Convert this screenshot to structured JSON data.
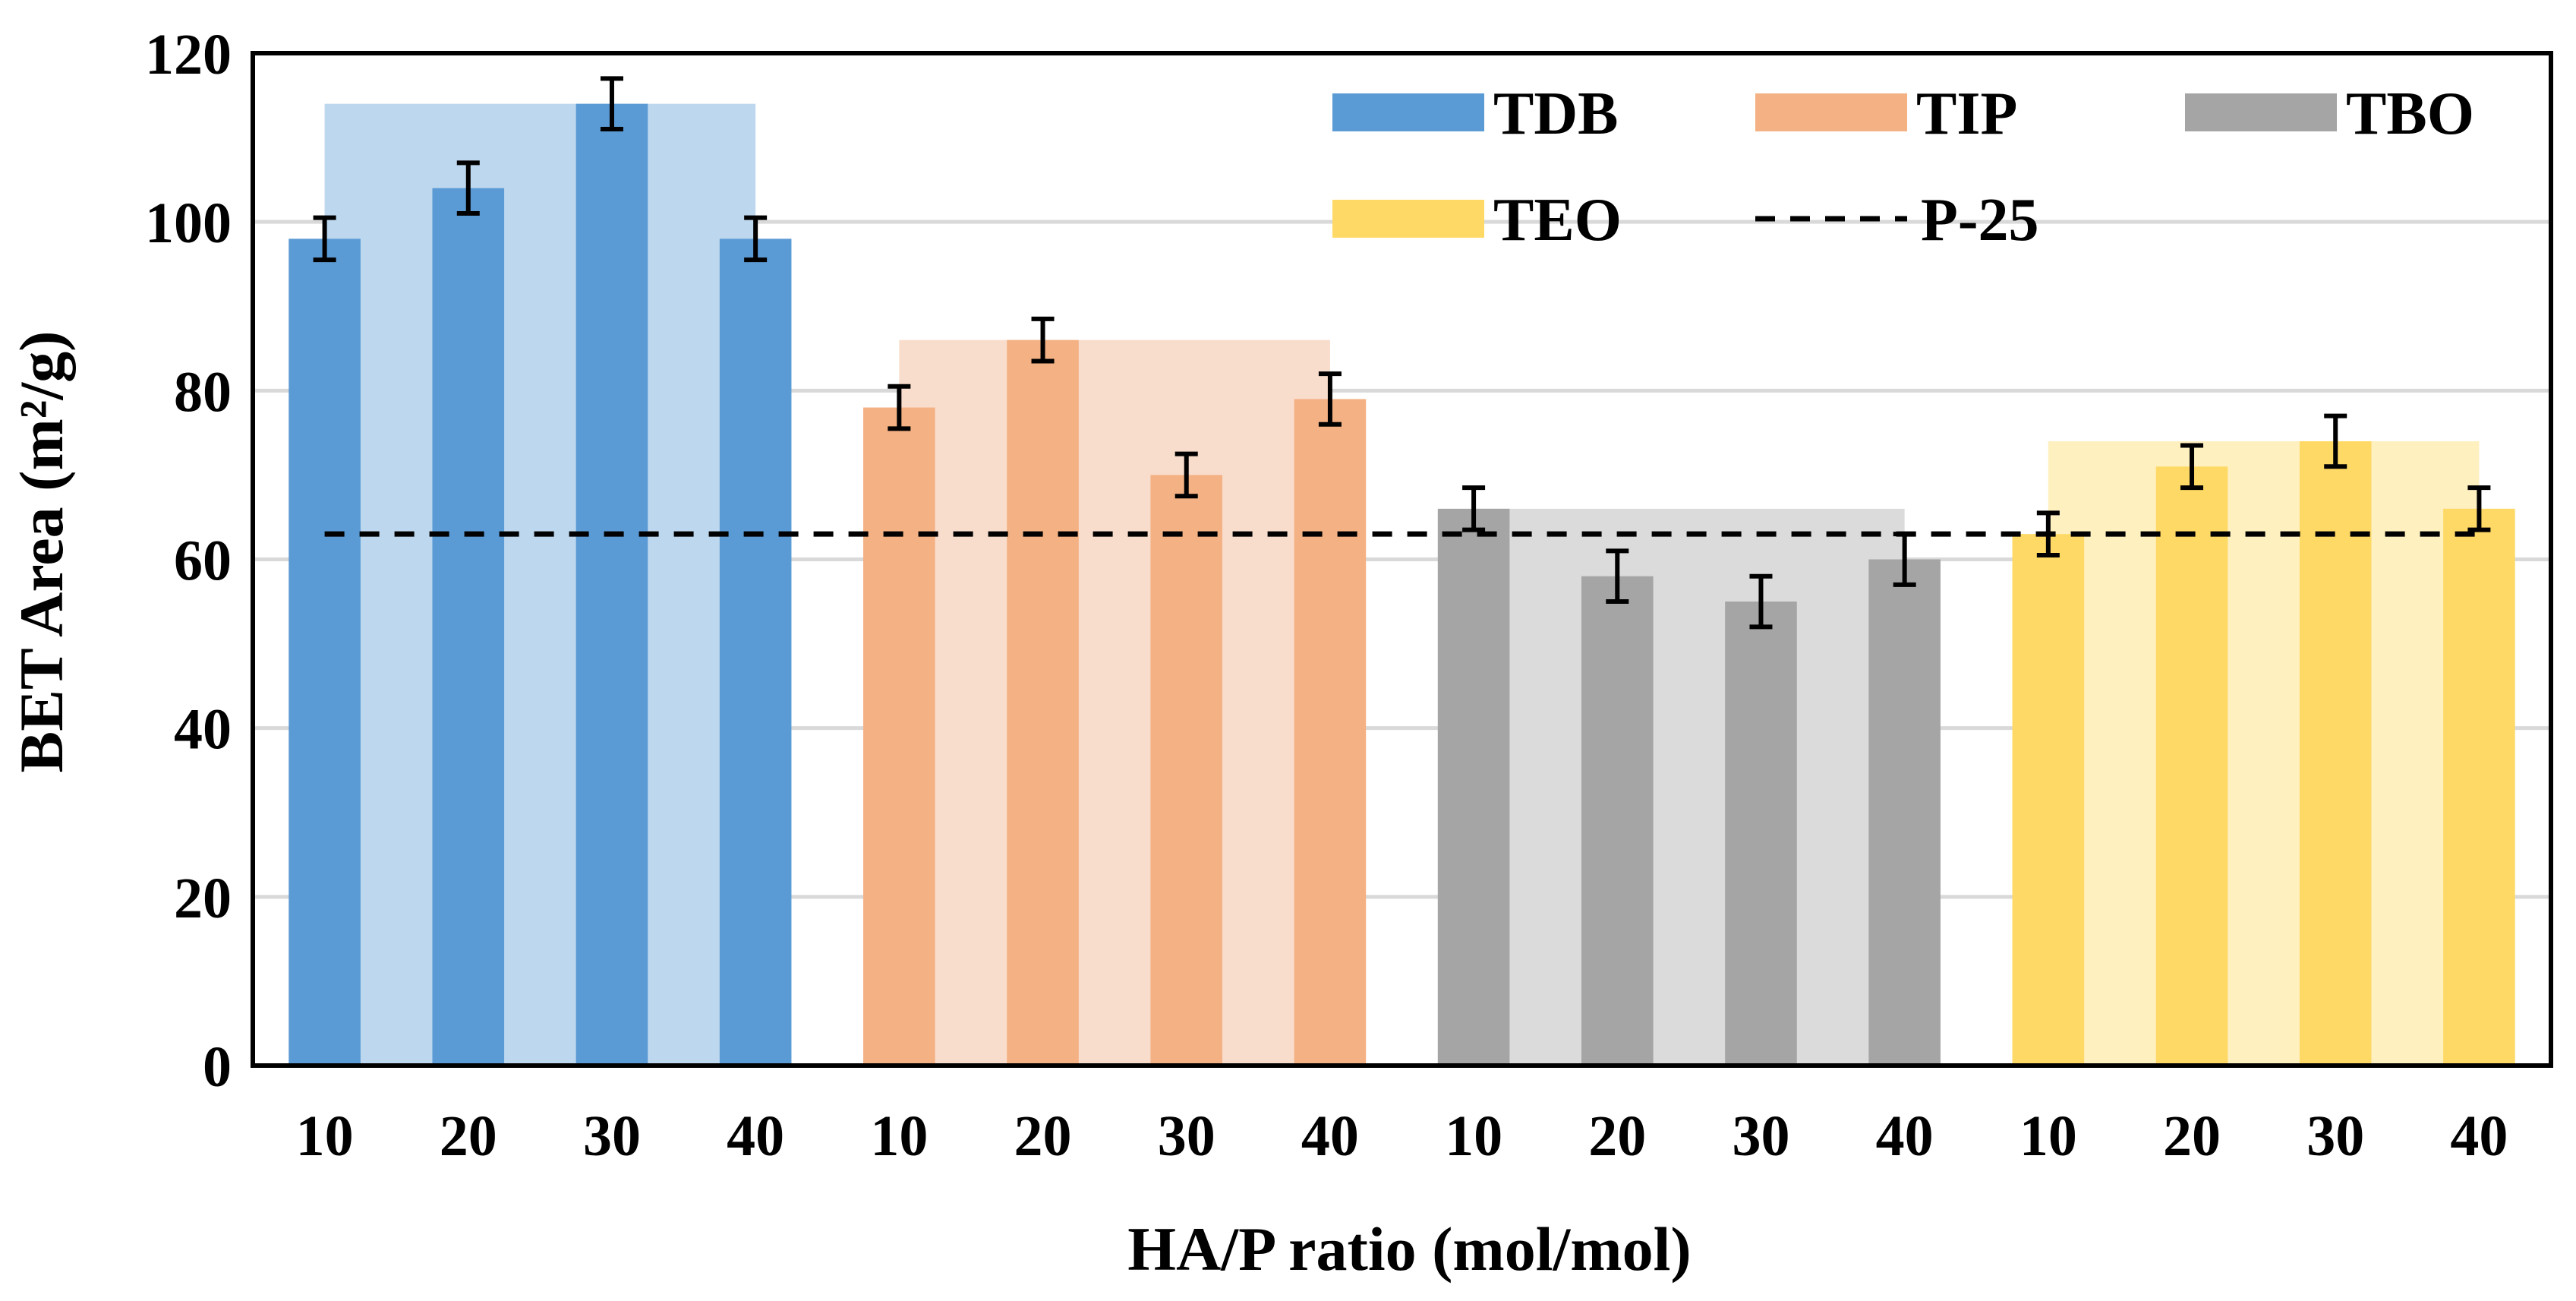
{
  "chart_data": {
    "type": "bar",
    "xlabel": "HA/P ratio (mol/mol)",
    "ylabel": "BET Area (m²/g)",
    "ylim": [
      0,
      120
    ],
    "yticks": [
      0,
      20,
      40,
      60,
      80,
      100,
      120
    ],
    "grid": true,
    "legend_position": "top-right",
    "reference_line": {
      "name": "P-25",
      "value": 63,
      "style": "dashed",
      "color": "#000000"
    },
    "groups": [
      {
        "name": "TDB",
        "color": "#5B9BD5",
        "shade_color": "#BDD7EE",
        "shade_value": 114,
        "categories": [
          "10",
          "20",
          "30",
          "40"
        ],
        "values": [
          98,
          104,
          114,
          98
        ],
        "errors": [
          2.5,
          3,
          3,
          2.5
        ]
      },
      {
        "name": "TIP",
        "color": "#F4B183",
        "shade_color": "#F9DDCC",
        "shade_value": 86,
        "categories": [
          "10",
          "20",
          "30",
          "40"
        ],
        "values": [
          78,
          86,
          70,
          79
        ],
        "errors": [
          2.5,
          2.5,
          2.5,
          3
        ]
      },
      {
        "name": "TBO",
        "color": "#A5A5A5",
        "shade_color": "#DBDBDB",
        "shade_value": 66,
        "categories": [
          "10",
          "20",
          "30",
          "40"
        ],
        "values": [
          66,
          58,
          55,
          60
        ],
        "errors": [
          2.5,
          3,
          3,
          3
        ]
      },
      {
        "name": "TEO",
        "color": "#FFD966",
        "shade_color": "#FFF0C0",
        "shade_value": 74,
        "categories": [
          "10",
          "20",
          "30",
          "40"
        ],
        "values": [
          63,
          71,
          74,
          66
        ],
        "errors": [
          2.5,
          2.5,
          3,
          2.5
        ]
      }
    ]
  }
}
